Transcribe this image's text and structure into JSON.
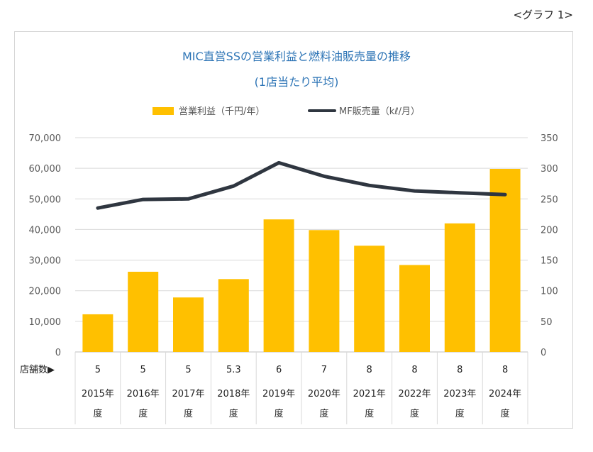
{
  "graph_label": "<グラフ 1>",
  "chart_data": {
    "type": "bar",
    "title": "MIC直営SSの営業利益と燃料油販売量の推移",
    "subtitle": "(1店当たり平均)",
    "categories": [
      "2015年度",
      "2016年度",
      "2017年度",
      "2018年度",
      "2019年度",
      "2020年度",
      "2021年度",
      "2022年度",
      "2023年度",
      "2024年度"
    ],
    "category_lines": [
      [
        "2015年",
        "度"
      ],
      [
        "2016年",
        "度"
      ],
      [
        "2017年",
        "度"
      ],
      [
        "2018年",
        "度"
      ],
      [
        "2019年",
        "度"
      ],
      [
        "2020年",
        "度"
      ],
      [
        "2021年",
        "度"
      ],
      [
        "2022年",
        "度"
      ],
      [
        "2023年",
        "度"
      ],
      [
        "2024年",
        "度"
      ]
    ],
    "series": [
      {
        "name": "営業利益（千円/年）",
        "type": "bar",
        "axis": "left",
        "color": "#ffc000",
        "values": [
          12300,
          26200,
          17800,
          23800,
          43300,
          39800,
          34700,
          28400,
          42000,
          59800
        ]
      },
      {
        "name": "MF販売量（kℓ/月）",
        "type": "line",
        "axis": "right",
        "color": "#2f3640",
        "values": [
          235,
          249,
          250,
          271,
          309,
          287,
          272,
          263,
          260,
          257
        ]
      }
    ],
    "left_axis": {
      "ylim": [
        0,
        70000
      ],
      "ticks": [
        "0",
        "10,000",
        "20,000",
        "30,000",
        "40,000",
        "50,000",
        "60,000",
        "70,000"
      ]
    },
    "right_axis": {
      "ylim": [
        0,
        350
      ],
      "ticks": [
        "0",
        "50",
        "100",
        "150",
        "200",
        "250",
        "300",
        "350"
      ]
    },
    "store_count_label": "店舗数▶",
    "store_counts": [
      "5",
      "5",
      "5",
      "5.3",
      "6",
      "7",
      "8",
      "8",
      "8",
      "8"
    ],
    "grid": true,
    "legend_position": "top-center"
  }
}
